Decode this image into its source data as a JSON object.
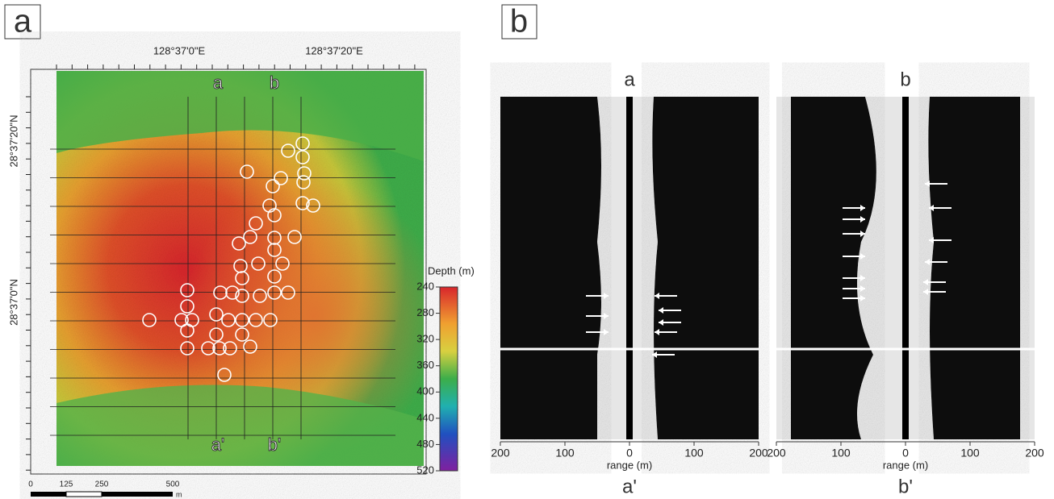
{
  "panel_a": {
    "label": "a",
    "lon_labels": [
      "128°37'0\"E",
      "128°37'20\"E"
    ],
    "lat_labels": [
      "28°37'20\"N",
      "28°37'0\"N"
    ],
    "profile_labels": {
      "top": [
        "a",
        "b"
      ],
      "bottom": [
        "a'",
        "b'"
      ]
    },
    "colorbar": {
      "title": "Depth (m)",
      "ticks": [
        240,
        280,
        320,
        360,
        400,
        440,
        480,
        520
      ]
    },
    "scale_bar": {
      "ticks": [
        "0",
        "125",
        "250",
        "500"
      ],
      "unit": "m"
    }
  },
  "panel_b": {
    "label": "b",
    "profiles": [
      {
        "top": "a",
        "bottom": "a'",
        "ticks": [
          "200",
          "100",
          "0",
          "100",
          "200"
        ],
        "axis_label": "range (m)"
      },
      {
        "top": "b",
        "bottom": "b'",
        "ticks": [
          "200",
          "100",
          "0",
          "100",
          "200"
        ],
        "axis_label": "range (m)"
      }
    ]
  }
}
